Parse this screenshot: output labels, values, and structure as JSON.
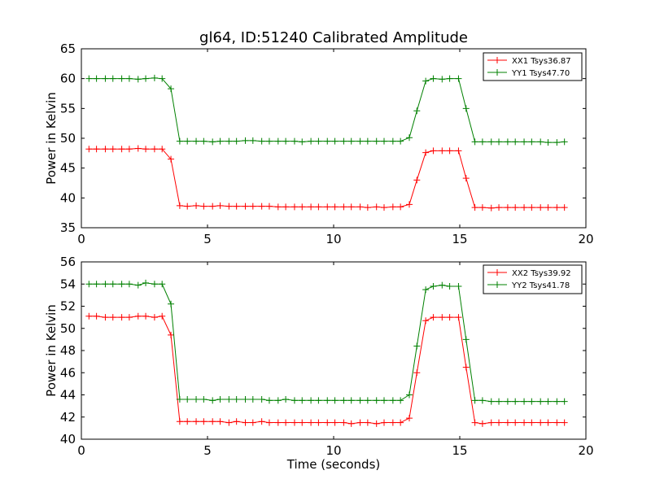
{
  "chart_data": {
    "type": "line",
    "title": "gl64, ID:51240 Calibrated Amplitude",
    "xlabel": "Time (seconds)",
    "colors": {
      "red": "#ff0000",
      "green": "#008000"
    },
    "x": [
      0.3,
      0.6,
      0.95,
      1.25,
      1.6,
      1.9,
      2.25,
      2.55,
      2.9,
      3.2,
      3.55,
      3.9,
      4.2,
      4.55,
      4.85,
      5.2,
      5.5,
      5.85,
      6.15,
      6.5,
      6.8,
      7.15,
      7.45,
      7.8,
      8.1,
      8.45,
      8.75,
      9.1,
      9.4,
      9.75,
      10.05,
      10.4,
      10.7,
      11.05,
      11.35,
      11.7,
      12.0,
      12.35,
      12.65,
      13.0,
      13.3,
      13.65,
      13.95,
      14.3,
      14.6,
      14.95,
      15.25,
      15.6,
      15.9,
      16.25,
      16.55,
      16.9,
      17.2,
      17.55,
      17.85,
      18.2,
      18.5,
      18.85,
      19.15
    ],
    "subplots": [
      {
        "ylabel": "Power in Kelvin",
        "xlim": [
          0,
          20
        ],
        "ylim": [
          35,
          65
        ],
        "xticks": [
          "0",
          "5",
          "10",
          "15",
          "20"
        ],
        "yticks": [
          "35",
          "40",
          "45",
          "50",
          "55",
          "60",
          "65"
        ],
        "legend_position": "top-right",
        "series": [
          {
            "name": "XX1 Tsys36.87",
            "color": "red",
            "values": [
              48.2,
              48.2,
              48.2,
              48.2,
              48.2,
              48.2,
              48.3,
              48.2,
              48.2,
              48.2,
              46.5,
              38.7,
              38.6,
              38.7,
              38.6,
              38.6,
              38.7,
              38.6,
              38.6,
              38.6,
              38.6,
              38.6,
              38.6,
              38.5,
              38.5,
              38.5,
              38.5,
              38.5,
              38.5,
              38.5,
              38.5,
              38.5,
              38.5,
              38.5,
              38.4,
              38.5,
              38.4,
              38.5,
              38.5,
              38.9,
              43.0,
              47.6,
              47.9,
              47.9,
              47.9,
              47.9,
              43.3,
              38.4,
              38.4,
              38.3,
              38.4,
              38.4,
              38.4,
              38.4,
              38.4,
              38.4,
              38.4,
              38.4,
              38.4
            ]
          },
          {
            "name": "YY1 Tsys47.70",
            "color": "green",
            "values": [
              60.0,
              60.0,
              60.0,
              60.0,
              60.0,
              60.0,
              59.9,
              60.0,
              60.1,
              60.0,
              58.3,
              49.5,
              49.5,
              49.5,
              49.5,
              49.4,
              49.5,
              49.5,
              49.5,
              49.6,
              49.6,
              49.5,
              49.5,
              49.5,
              49.5,
              49.5,
              49.4,
              49.5,
              49.5,
              49.5,
              49.5,
              49.5,
              49.5,
              49.5,
              49.5,
              49.5,
              49.5,
              49.5,
              49.5,
              50.1,
              54.6,
              59.6,
              60.0,
              59.9,
              60.0,
              60.0,
              55.0,
              49.4,
              49.4,
              49.4,
              49.4,
              49.4,
              49.4,
              49.4,
              49.4,
              49.4,
              49.3,
              49.3,
              49.4
            ]
          }
        ]
      },
      {
        "ylabel": "Power in Kelvin",
        "xlabel": "Time (seconds)",
        "xlim": [
          0,
          20
        ],
        "ylim": [
          40,
          56
        ],
        "xticks": [
          "0",
          "5",
          "10",
          "15",
          "20"
        ],
        "yticks": [
          "40",
          "42",
          "44",
          "46",
          "48",
          "50",
          "52",
          "54",
          "56"
        ],
        "legend_position": "top-right",
        "series": [
          {
            "name": "XX2 Tsys39.92",
            "color": "red",
            "values": [
              51.1,
              51.1,
              51.0,
              51.0,
              51.0,
              51.0,
              51.1,
              51.1,
              51.0,
              51.1,
              49.4,
              41.6,
              41.6,
              41.6,
              41.6,
              41.6,
              41.6,
              41.5,
              41.6,
              41.5,
              41.5,
              41.6,
              41.5,
              41.5,
              41.5,
              41.5,
              41.5,
              41.5,
              41.5,
              41.5,
              41.5,
              41.5,
              41.4,
              41.5,
              41.5,
              41.4,
              41.5,
              41.5,
              41.5,
              41.9,
              46.0,
              50.7,
              51.0,
              51.0,
              51.0,
              51.0,
              46.5,
              41.5,
              41.4,
              41.5,
              41.5,
              41.5,
              41.5,
              41.5,
              41.5,
              41.5,
              41.5,
              41.5,
              41.5
            ]
          },
          {
            "name": "YY2 Tsys41.78",
            "color": "green",
            "values": [
              54.0,
              54.0,
              54.0,
              54.0,
              54.0,
              54.0,
              53.9,
              54.1,
              54.0,
              54.0,
              52.2,
              43.6,
              43.6,
              43.6,
              43.6,
              43.5,
              43.6,
              43.6,
              43.6,
              43.6,
              43.6,
              43.6,
              43.5,
              43.5,
              43.6,
              43.5,
              43.5,
              43.5,
              43.5,
              43.5,
              43.5,
              43.5,
              43.5,
              43.5,
              43.5,
              43.5,
              43.5,
              43.5,
              43.5,
              44.0,
              48.4,
              53.5,
              53.8,
              53.9,
              53.8,
              53.8,
              49.0,
              43.5,
              43.5,
              43.4,
              43.4,
              43.4,
              43.4,
              43.4,
              43.4,
              43.4,
              43.4,
              43.4,
              43.4
            ]
          }
        ]
      }
    ]
  }
}
